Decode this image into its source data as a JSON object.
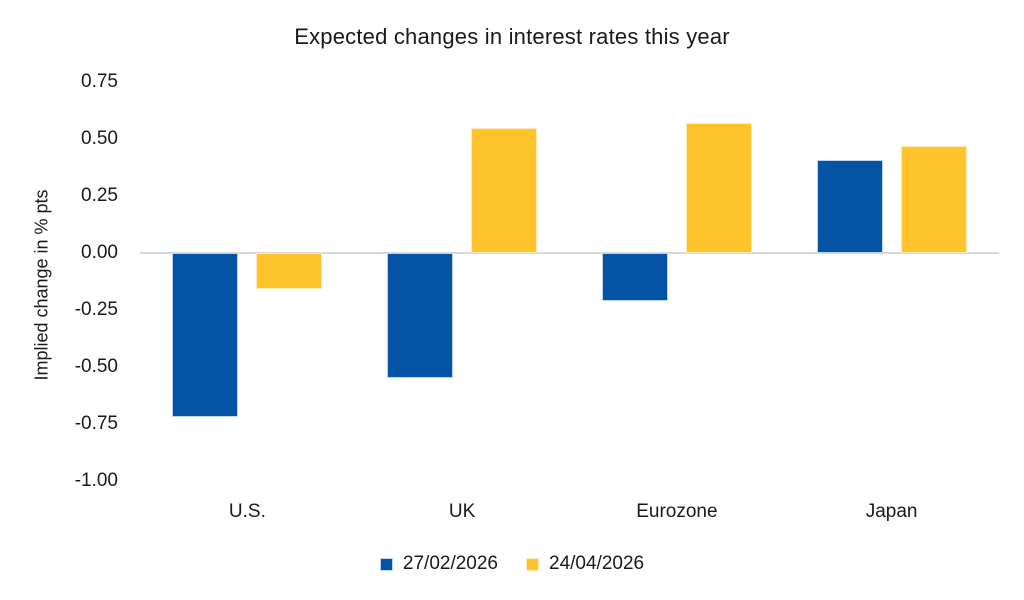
{
  "chart_data": {
    "type": "bar",
    "title": "Expected changes in interest rates this year",
    "ylabel": "Implied change in % pts",
    "xlabel": "",
    "categories": [
      "U.S.",
      "UK",
      "Eurozone",
      "Japan"
    ],
    "series": [
      {
        "name": "27/02/2026",
        "color": "#0553A4",
        "border_color": "#BDD6EF",
        "values": [
          -0.72,
          -0.55,
          -0.21,
          0.41
        ]
      },
      {
        "name": "24/04/2026",
        "color": "#FFC42B",
        "border_color": "#FFE9B8",
        "values": [
          -0.16,
          0.55,
          0.57,
          0.47
        ]
      }
    ],
    "y_ticks": [
      "0.75",
      "0.50",
      "0.25",
      "0.00",
      "-0.25",
      "-0.50",
      "-0.75",
      "-1.00"
    ],
    "ylim": [
      -1.0,
      0.75
    ],
    "grid": false,
    "legend_position": "bottom",
    "axis_line_color": "#D9D9D9",
    "text_color": "#1A1A1A",
    "background_color": "#FFFFFF"
  }
}
